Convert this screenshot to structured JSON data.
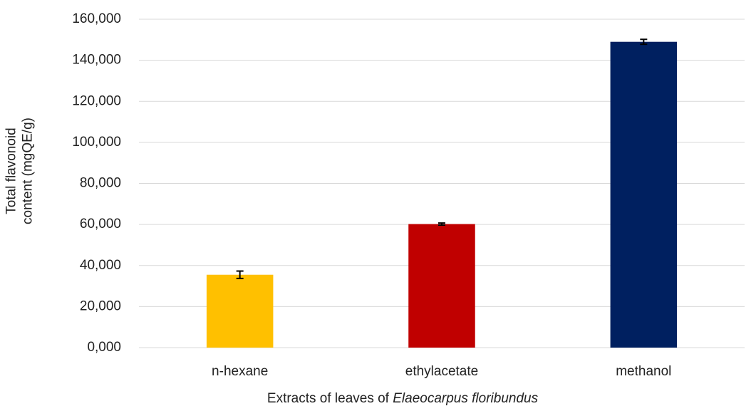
{
  "chart_data": {
    "type": "bar",
    "ylabel": [
      "Total flavonoid",
      "content (mgQE/g)"
    ],
    "xlabel": {
      "text": "Extracts of leaves of",
      "species": "Elaeocarpus floribundus"
    },
    "categories": [
      "n-hexane",
      "ethylacetate",
      "methanol"
    ],
    "values": [
      35.5,
      60.2,
      149.0
    ],
    "errors": [
      1.8,
      0.5,
      1.2
    ],
    "colors": [
      "#ffc000",
      "#c00000",
      "#002060"
    ],
    "ylim": [
      0,
      160
    ],
    "yticks": [
      {
        "value": 0,
        "label": "0,000"
      },
      {
        "value": 20,
        "label": "20,000"
      },
      {
        "value": 40,
        "label": "40,000"
      },
      {
        "value": 60,
        "label": "60,000"
      },
      {
        "value": 80,
        "label": "80,000"
      },
      {
        "value": 100,
        "label": "100,000"
      },
      {
        "value": 120,
        "label": "120,000"
      },
      {
        "value": 140,
        "label": "140,000"
      },
      {
        "value": 160,
        "label": "160,000"
      }
    ],
    "grid": true
  }
}
